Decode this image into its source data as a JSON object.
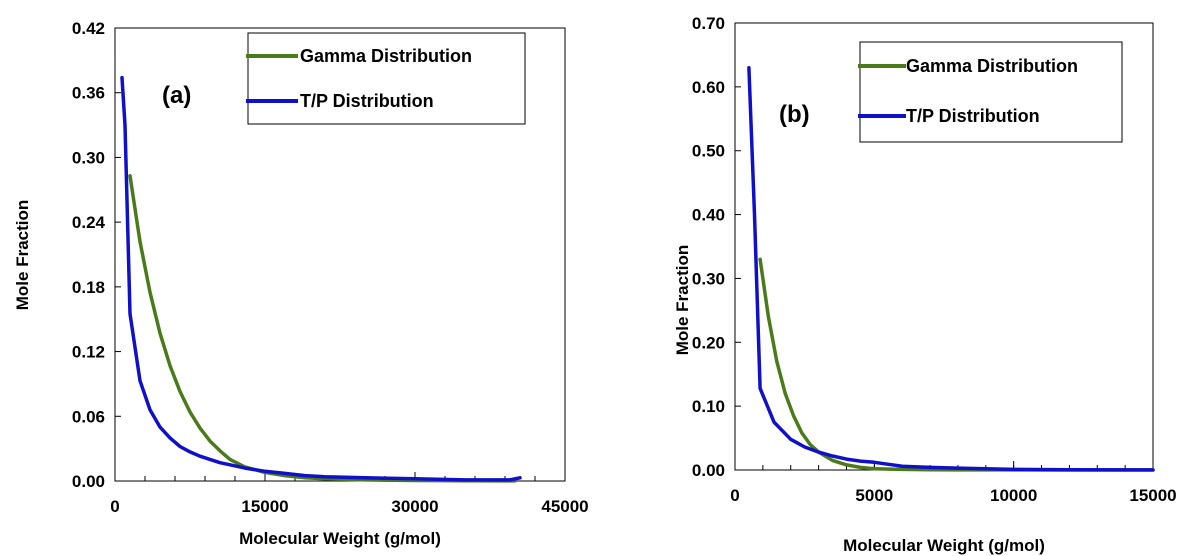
{
  "colors": {
    "gamma": "#4a7a1a",
    "tp": "#1010c8"
  },
  "chart_data": [
    {
      "type": "line",
      "panel_label": "(a)",
      "xlabel": "Molecular Weight (g/mol)",
      "ylabel": "Mole Fraction",
      "xlim": [
        0,
        45000
      ],
      "ylim": [
        0,
        0.42
      ],
      "xticks": [
        0,
        15000,
        30000,
        45000
      ],
      "yticks": [
        0.0,
        0.06,
        0.12,
        0.18,
        0.24,
        0.3,
        0.36,
        0.42
      ],
      "xtick_labels": [
        "0",
        "15000",
        "30000",
        "45000"
      ],
      "ytick_labels": [
        "0.00",
        "0.06",
        "0.12",
        "0.18",
        "0.24",
        "0.30",
        "0.36",
        "0.42"
      ],
      "legend_position": "top-right",
      "series": [
        {
          "name": "Gamma Distribution",
          "x": [
            1500,
            2500,
            3500,
            4500,
            5500,
            6500,
            7500,
            8500,
            9500,
            10500,
            11500,
            13000,
            15000,
            17000,
            19000,
            21000,
            25000,
            30000,
            35000,
            40000
          ],
          "y": [
            0.283,
            0.222,
            0.175,
            0.137,
            0.107,
            0.083,
            0.064,
            0.049,
            0.037,
            0.028,
            0.02,
            0.013,
            0.008,
            0.005,
            0.003,
            0.002,
            0.001,
            0.0005,
            0.0002,
            0.0001
          ]
        },
        {
          "name": "T/P Distribution",
          "x": [
            700,
            1000,
            1500,
            2500,
            3500,
            4500,
            5500,
            6500,
            7500,
            8500,
            9500,
            10500,
            11500,
            13000,
            15000,
            17000,
            19000,
            21000,
            25000,
            30000,
            35000,
            39500,
            40500
          ],
          "y": [
            0.374,
            0.33,
            0.155,
            0.093,
            0.066,
            0.05,
            0.04,
            0.032,
            0.027,
            0.023,
            0.02,
            0.017,
            0.015,
            0.012,
            0.009,
            0.007,
            0.005,
            0.004,
            0.003,
            0.002,
            0.001,
            0.001,
            0.003
          ]
        }
      ]
    },
    {
      "type": "line",
      "panel_label": "(b)",
      "xlabel": "Molecular Weight (g/mol)",
      "ylabel": "Mole Fraction",
      "xlim": [
        0,
        15000
      ],
      "ylim": [
        0,
        0.7
      ],
      "xticks": [
        0,
        5000,
        10000,
        15000
      ],
      "yticks": [
        0.0,
        0.1,
        0.2,
        0.3,
        0.4,
        0.5,
        0.6,
        0.7
      ],
      "xtick_labels": [
        "0",
        "5000",
        "10000",
        "15000"
      ],
      "ytick_labels": [
        "0.00",
        "0.10",
        "0.20",
        "0.30",
        "0.40",
        "0.50",
        "0.60",
        "0.70"
      ],
      "legend_position": "top-right",
      "series": [
        {
          "name": "Gamma Distribution",
          "x": [
            900,
            1200,
            1500,
            1800,
            2100,
            2400,
            2700,
            3000,
            3500,
            4000,
            4500,
            5000,
            6000,
            7000,
            8000,
            10000,
            12000,
            15000
          ],
          "y": [
            0.33,
            0.24,
            0.17,
            0.12,
            0.085,
            0.058,
            0.04,
            0.028,
            0.015,
            0.008,
            0.004,
            0.002,
            0.001,
            0.0005,
            0.0002,
            0.0001,
            0.0,
            0.0
          ]
        },
        {
          "name": "T/P Distribution",
          "x": [
            500,
            700,
            900,
            1400,
            2000,
            2500,
            3000,
            3500,
            4000,
            4500,
            5000,
            5500,
            6000,
            7000,
            8000,
            9000,
            10000,
            12000,
            15000
          ],
          "y": [
            0.63,
            0.4,
            0.128,
            0.075,
            0.048,
            0.036,
            0.028,
            0.022,
            0.017,
            0.014,
            0.012,
            0.009,
            0.006,
            0.004,
            0.003,
            0.002,
            0.001,
            0.0005,
            0.0002
          ]
        }
      ]
    }
  ]
}
